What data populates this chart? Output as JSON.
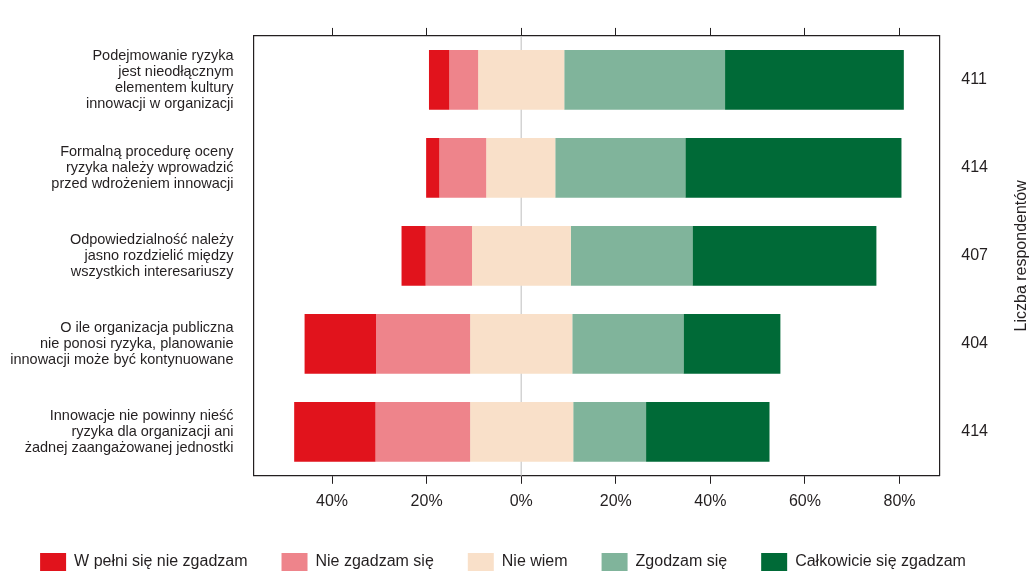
{
  "chart_data": {
    "type": "bar",
    "orientation": "horizontal",
    "categories": [
      "Podejmowanie ryzyka\njest nieodłącznym\nelementem kultury\ninnowacji w organizacji",
      "Formalną procedurę oceny\nryzyka należy wprowadzić\nprzed wdrożeniem innowacji",
      "Odpowiedzialność należy\njasno rozdzielić między\nwszystkich interesariuszy",
      "O ile organizacja publiczna\nnie ponosi ryzyka, planowanie\ninnowacji może być kontynuowane",
      "Innowacje nie powinny nieść\nryzyka dla organizacji ani\nżadnej zaangażowanej jednostki"
    ],
    "y2_categories": [
      "411",
      "414",
      "407",
      "404",
      "414"
    ],
    "y2label": "Liczba respondentów",
    "series": [
      {
        "name": "W pełni się nie zgadzam",
        "color": "#e1131c",
        "base": [
          -19.5,
          -20.1,
          -25.3,
          -45.8,
          -48.0
        ],
        "values": [
          4.3,
          2.8,
          5.1,
          15.1,
          17.2
        ]
      },
      {
        "name": "Nie zgadzam się",
        "color": "#ee848b",
        "base": [
          -15.2,
          -17.3,
          -20.2,
          -30.7,
          -30.8
        ],
        "values": [
          6.1,
          9.9,
          9.8,
          19.9,
          20.0
        ]
      },
      {
        "name": "Nie wiem",
        "color": "#f9e0c9",
        "base": [
          -9.1,
          -7.4,
          -10.4,
          -10.8,
          -10.8
        ],
        "values": [
          18.2,
          14.6,
          20.9,
          21.6,
          21.8
        ]
      },
      {
        "name": "Zgodzam się",
        "color": "#80b49b",
        "base": [
          9.1,
          7.2,
          10.5,
          10.8,
          11.0
        ],
        "values": [
          34.0,
          27.5,
          25.7,
          23.5,
          15.4
        ]
      },
      {
        "name": "Całkowicie się zgadzam",
        "color": "#006a37",
        "base": [
          43.1,
          34.7,
          36.2,
          34.3,
          26.4
        ],
        "values": [
          37.8,
          45.7,
          38.9,
          20.5,
          26.1
        ]
      }
    ],
    "xlim": [
      -56.6,
      88.4
    ],
    "xticks": [
      {
        "value": -40,
        "label": "40%"
      },
      {
        "value": -20,
        "label": "20%"
      },
      {
        "value": 0,
        "label": "0%"
      },
      {
        "value": 20,
        "label": "20%"
      },
      {
        "value": 40,
        "label": "40%"
      },
      {
        "value": 60,
        "label": "60%"
      },
      {
        "value": 80,
        "label": "80%"
      }
    ],
    "ref_lines": [
      {
        "axis": "x",
        "value": 0,
        "color": "#c8c8c8"
      }
    ],
    "legend": "bottom"
  }
}
